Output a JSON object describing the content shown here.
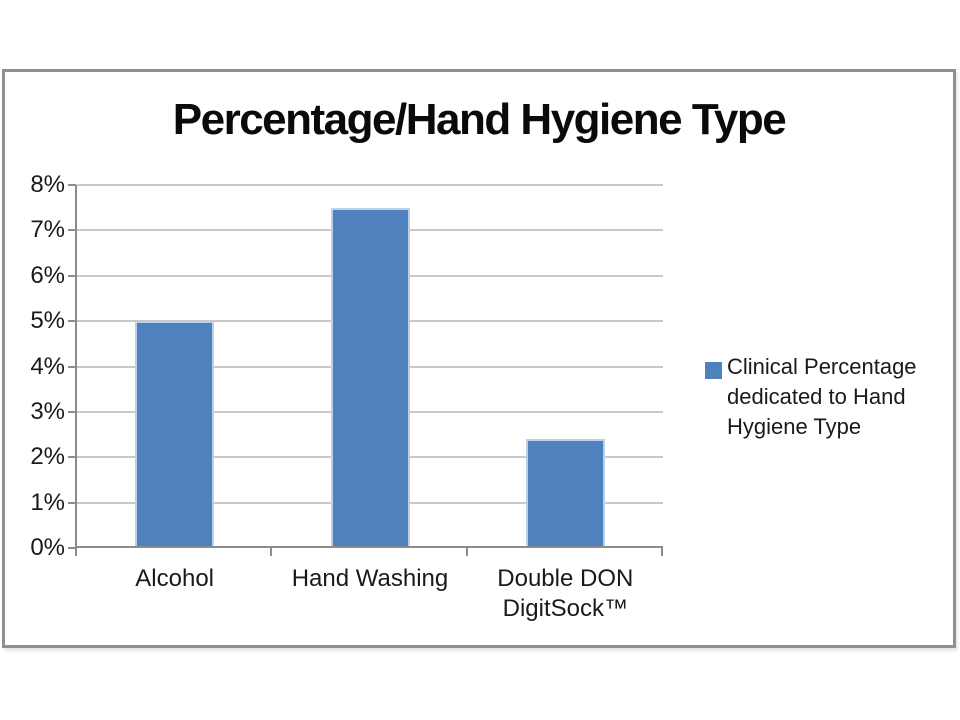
{
  "chart_data": {
    "type": "bar",
    "title": "Percentage/Hand Hygiene Type",
    "categories": [
      "Alcohol",
      "Hand Washing",
      "Double DON\nDigitSock™"
    ],
    "values": [
      5,
      7.5,
      2.4
    ],
    "value_unit": "%",
    "xlabel": "",
    "ylabel": "",
    "ylim": [
      0,
      8
    ],
    "ytick_labels": [
      "0%",
      "1%",
      "2%",
      "3%",
      "4%",
      "5%",
      "6%",
      "7%",
      "8%"
    ],
    "grid": true,
    "legend_position": "right",
    "legend_label": "Clinical Percentage dedicated to Hand Hygiene Type",
    "colors": {
      "bar_fill": "#4F81BD",
      "bar_edge": "#BDD0E9",
      "gridline": "#C9C9C9",
      "axis": "#8C8C8C",
      "text": "#1A1A1A",
      "title_text": "#0A0A0A",
      "frame_border": "#8F8F8F"
    }
  }
}
